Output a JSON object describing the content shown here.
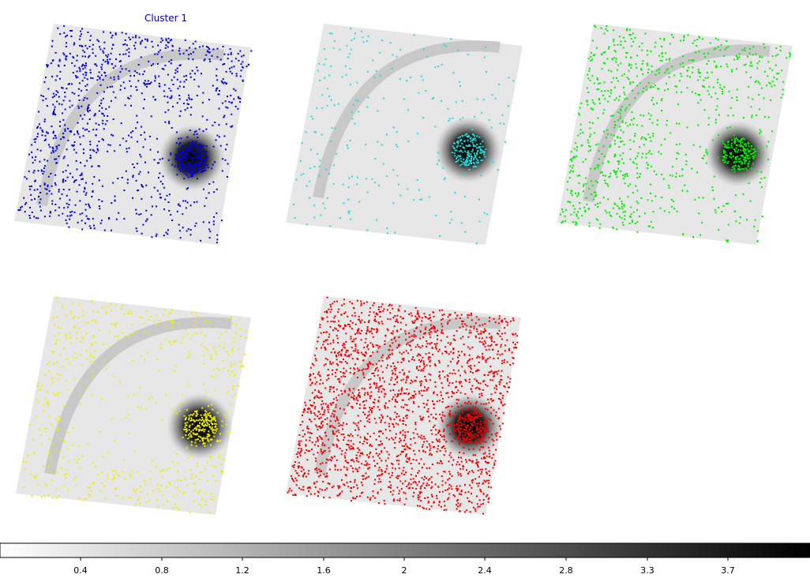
{
  "chart_data": {
    "type": "scatter",
    "description_visible": "five sky-image panels with clustered point overlays and a shared grayscale colorbar",
    "panels": [
      {
        "title": "Cluster 1",
        "color": "#0000dd",
        "points": "dense everywhere, especially left and top arcs"
      },
      {
        "title": "",
        "color": "#22dddd",
        "points": "concentrated at bright core, sparse elsewhere"
      },
      {
        "title": "",
        "color": "#00ee00",
        "points": "dense left side and upper arc, core cluster"
      },
      {
        "title": "",
        "color": "#eeee00",
        "points": "outer ring and core cluster"
      },
      {
        "title": "",
        "color": "#ee0000",
        "points": "very dense everywhere"
      }
    ],
    "colorbar": {
      "cmap": "gray_r",
      "tick_labels": [
        "0.4",
        "0.8",
        "1.2",
        "1.6",
        "2",
        "2.4",
        "2.8",
        "3.3",
        "3.7"
      ]
    }
  }
}
